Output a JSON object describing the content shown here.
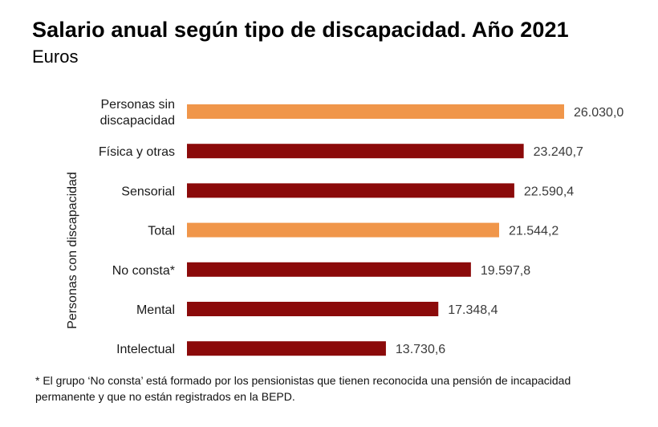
{
  "title": "Salario anual según tipo de discapacidad. Año 2021",
  "subtitle": "Euros",
  "note": "* El grupo ‘No consta’ está formado por los pensionistas que tienen reconocida una pensión de incapacidad permanente y que no están registrados en la BEPD.",
  "colors": {
    "highlight": "#F0964A",
    "disability": "#8B0A0A"
  },
  "chart_data": {
    "type": "bar",
    "orientation": "horizontal",
    "title": "Salario anual según tipo de discapacidad. Año 2021",
    "subtitle": "Euros",
    "group_label": "Personas con discapacidad",
    "categories": [
      [
        "Personas sin",
        "discapacidad"
      ],
      [
        "Física y otras"
      ],
      [
        "Sensorial"
      ],
      [
        "Total"
      ],
      [
        "No consta*"
      ],
      [
        "Mental"
      ],
      [
        "Intelectual"
      ]
    ],
    "values": [
      26030.0,
      23240.7,
      22590.4,
      21544.2,
      19597.8,
      17348.4,
      13730.6
    ],
    "value_labels": [
      "26.030,0",
      "23.240,7",
      "22.590,4",
      "21.544,2",
      "19.597,8",
      "17.348,4",
      "13.730,6"
    ],
    "bar_colors": [
      "highlight",
      "disability",
      "disability",
      "highlight",
      "disability",
      "disability",
      "disability"
    ],
    "xlim": [
      0,
      26030.0
    ],
    "grid": false,
    "legend": "none"
  }
}
